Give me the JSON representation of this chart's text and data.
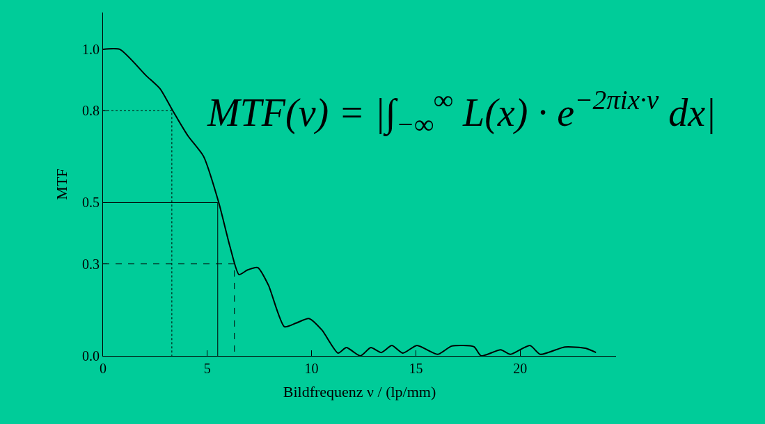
{
  "chart_data": {
    "type": "line",
    "xlabel": "Bildfrequenz ν / (lp/mm)",
    "ylabel": "MTF",
    "xlim": [
      0,
      24.6
    ],
    "ylim": [
      0,
      1.12
    ],
    "xticks": [
      0,
      5,
      10,
      15,
      20
    ],
    "yticks": [
      {
        "value": 0,
        "label": "0.0"
      },
      {
        "value": 0.3,
        "label": "0.3"
      },
      {
        "value": 0.5,
        "label": "0.5"
      },
      {
        "value": 0.8,
        "label": "0.8"
      },
      {
        "value": 1.0,
        "label": "1.0"
      }
    ],
    "grid": false,
    "marker": "none",
    "annotations": [
      "MTF(ν) = |∫$_{−∞}$$^{∞}$ L(x) · e$^{−2πix·ν}$ dx|"
    ],
    "series": [
      {
        "color": "#000000",
        "line_style": "solid",
        "x": [
          0,
          0.8,
          2.07,
          2.74,
          3.34,
          4.08,
          4.82,
          5.55,
          6.09,
          6.52,
          6.92,
          7.42,
          7.93,
          8.7,
          9.26,
          9.87,
          10.5,
          11.27,
          11.67,
          12.34,
          12.84,
          13.34,
          13.85,
          14.38,
          15.05,
          16.05,
          16.72,
          17.79,
          18.13,
          19.07,
          19.53,
          20.47,
          20.97,
          22.14,
          23.14,
          23.64
        ],
        "values": [
          1.0,
          1.0,
          0.914,
          0.871,
          0.8,
          0.717,
          0.651,
          0.5,
          0.356,
          0.265,
          0.28,
          0.288,
          0.231,
          0.095,
          0.107,
          0.122,
          0.084,
          0.009,
          0.027,
          0.0,
          0.027,
          0.011,
          0.034,
          0.009,
          0.034,
          0.005,
          0.032,
          0.03,
          0.0,
          0.02,
          0.005,
          0.034,
          0.005,
          0.029,
          0.025,
          0.011
        ]
      },
      {
        "color": "#000000",
        "line_style": "dotted",
        "x": [
          0,
          3.3,
          3.3
        ],
        "values": [
          0.8,
          0.8,
          0
        ]
      },
      {
        "color": "#000000",
        "line_style": "solid",
        "x": [
          0,
          5.5,
          5.5
        ],
        "values": [
          0.5,
          0.5,
          0
        ]
      },
      {
        "color": "#000000",
        "line_style": "dashed",
        "x": [
          0,
          6.3,
          6.3
        ],
        "values": [
          0.3,
          0.3,
          0
        ]
      }
    ]
  }
}
